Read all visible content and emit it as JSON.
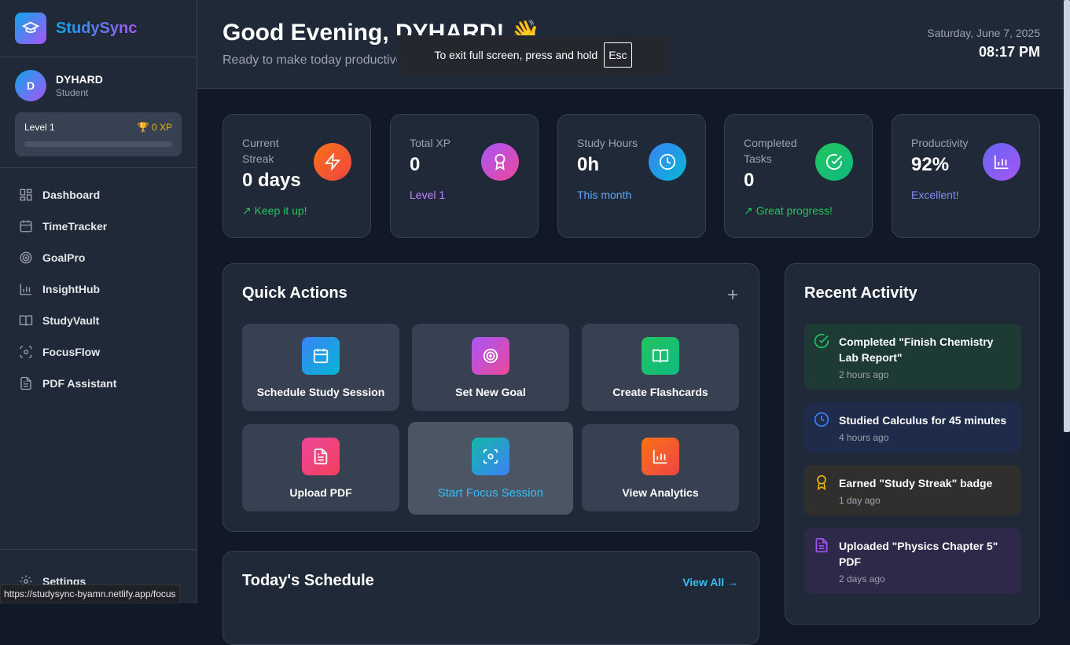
{
  "app": {
    "name": "StudySync"
  },
  "user": {
    "initial": "D",
    "name": "DYHARD",
    "role": "Student",
    "level": "Level 1",
    "xp": "0 XP",
    "level_progress": 0
  },
  "nav": [
    {
      "label": "Dashboard",
      "icon": "grid-icon"
    },
    {
      "label": "TimeTracker",
      "icon": "calendar-icon"
    },
    {
      "label": "GoalPro",
      "icon": "target-icon"
    },
    {
      "label": "InsightHub",
      "icon": "bar-chart-icon"
    },
    {
      "label": "StudyVault",
      "icon": "book-icon"
    },
    {
      "label": "FocusFlow",
      "icon": "focus-icon"
    },
    {
      "label": "PDF Assistant",
      "icon": "file-icon"
    }
  ],
  "settings": "Settings",
  "header": {
    "greeting": "Good Evening, DYHARD! 👋",
    "subtitle": "Ready to make today productive?",
    "date": "Saturday, June 7, 2025",
    "time": "08:17 PM"
  },
  "fullscreen_toast": {
    "text": "To exit full screen, press and hold",
    "key": "Esc"
  },
  "stats": [
    {
      "label": "Current Streak",
      "value": "0 days",
      "footer": "Keep it up!",
      "color": "#22c55e",
      "icon": "lightning-icon",
      "grad": "#f97316,#ef4444"
    },
    {
      "label": "Total XP",
      "value": "0",
      "footer": "Level 1",
      "color": "#c084fc",
      "icon": "award-icon",
      "grad": "#a855f7,#ec4899"
    },
    {
      "label": "Study Hours",
      "value": "0h",
      "footer": "This month",
      "color": "#60a5fa",
      "icon": "clock-icon",
      "grad": "#3b82f6,#06b6d4"
    },
    {
      "label": "Completed Tasks",
      "value": "0",
      "footer": "Great progress!",
      "color": "#22c55e",
      "icon": "check-circle-icon",
      "grad": "#22c55e,#10b981"
    },
    {
      "label": "Productivity",
      "value": "92%",
      "footer": "Excellent!",
      "color": "#818cf8",
      "icon": "bar-chart-icon",
      "grad": "#6366f1,#a855f7"
    }
  ],
  "quick_actions": {
    "title": "Quick Actions",
    "items": [
      {
        "label": "Schedule Study Session",
        "icon": "calendar-icon",
        "grad": "#3b82f6,#06b6d4"
      },
      {
        "label": "Set New Goal",
        "icon": "target-icon",
        "grad": "#a855f7,#ec4899"
      },
      {
        "label": "Create Flashcards",
        "icon": "book-icon",
        "grad": "#22c55e,#10b981"
      },
      {
        "label": "Upload PDF",
        "icon": "file-icon",
        "grad": "#ec4899,#f43f5e"
      },
      {
        "label": "Start Focus Session",
        "icon": "focus-icon",
        "grad": "#14b8a6,#3b82f6"
      },
      {
        "label": "View Analytics",
        "icon": "bar-chart-icon",
        "grad": "#f97316,#ef4444"
      }
    ]
  },
  "recent_activity": {
    "title": "Recent Activity",
    "items": [
      {
        "text": "Completed \"Finish Chemistry Lab Report\"",
        "time": "2 hours ago",
        "icon": "check-circle-icon",
        "color": "#22c55e",
        "bg": "#1e3a35"
      },
      {
        "text": "Studied Calculus for 45 minutes",
        "time": "4 hours ago",
        "icon": "clock-icon",
        "color": "#3b82f6",
        "bg": "#1e2b4a"
      },
      {
        "text": "Earned \"Study Streak\" badge",
        "time": "1 day ago",
        "icon": "award-icon",
        "color": "#eab308",
        "bg": "#312e2e"
      },
      {
        "text": "Uploaded \"Physics Chapter 5\" PDF",
        "time": "2 days ago",
        "icon": "file-icon",
        "color": "#a855f7",
        "bg": "#2e2849"
      }
    ]
  },
  "schedule": {
    "title": "Today's Schedule",
    "view_all": "View All"
  },
  "status_url": "https://studysync-byamn.netlify.app/focus"
}
